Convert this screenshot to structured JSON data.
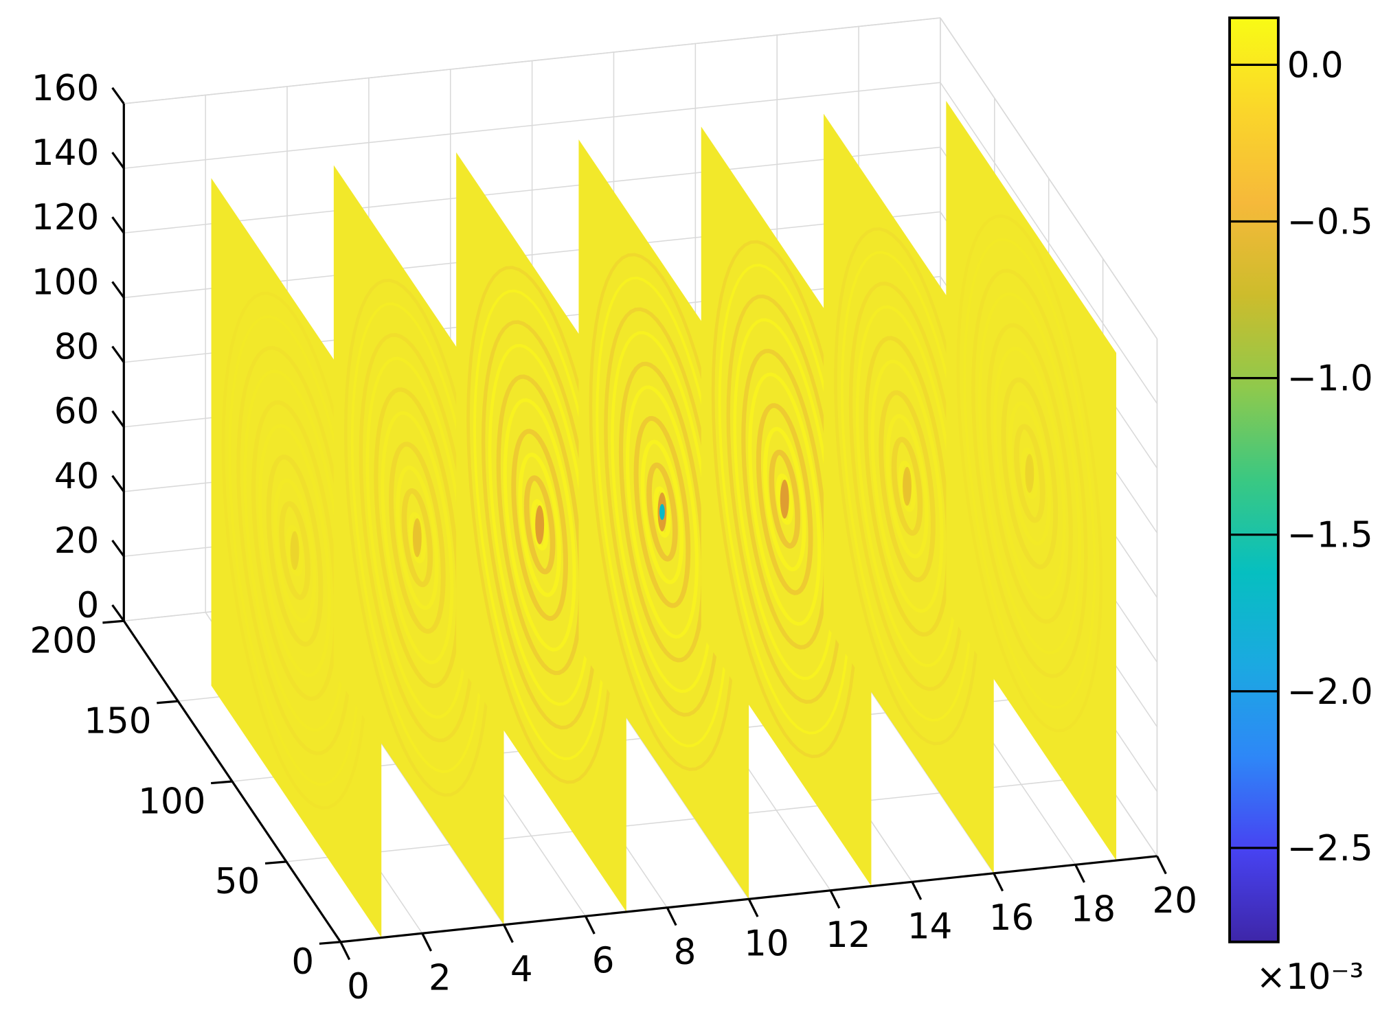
{
  "chart_data": {
    "type": "heatmap",
    "subtype": "3d-slice",
    "title": "",
    "xlabel": "",
    "ylabel": "",
    "zlabel": "",
    "xlim": [
      0,
      20
    ],
    "ylim": [
      0,
      200
    ],
    "zlim": [
      0,
      160
    ],
    "x_ticks": [
      "0",
      "2",
      "4",
      "6",
      "8",
      "10",
      "12",
      "14",
      "16",
      "18",
      "20"
    ],
    "y_ticks": [
      "0",
      "50",
      "100",
      "150",
      "200"
    ],
    "z_ticks": [
      "0",
      "20",
      "40",
      "60",
      "80",
      "100",
      "120",
      "140",
      "160"
    ],
    "grid": true,
    "slice_x": [
      1,
      4,
      7,
      10,
      13,
      16,
      19
    ],
    "slice_min_value_e3": [
      -0.15,
      -0.3,
      -0.6,
      -1.5,
      -0.6,
      -0.3,
      -0.15
    ],
    "ring_center_yz": [
      80,
      80
    ],
    "colorbar": {
      "colormap": "parula",
      "range": [
        -2.8,
        0.15
      ],
      "ticks": [
        "0.0",
        "−0.5",
        "−1.0",
        "−1.5",
        "−2.0",
        "−2.5"
      ],
      "tick_values": [
        0,
        -0.5,
        -1.0,
        -1.5,
        -2.0,
        -2.5
      ],
      "multiplier": "×10⁻³",
      "colors": [
        "#3e26a8",
        "#4743f2",
        "#2e87f7",
        "#1ba9e1",
        "#06bfc0",
        "#3ac882",
        "#8fc94c",
        "#cdbc2c",
        "#f6b93a",
        "#fad62a",
        "#f9fb15"
      ]
    },
    "background_color": "#f2e82a"
  }
}
